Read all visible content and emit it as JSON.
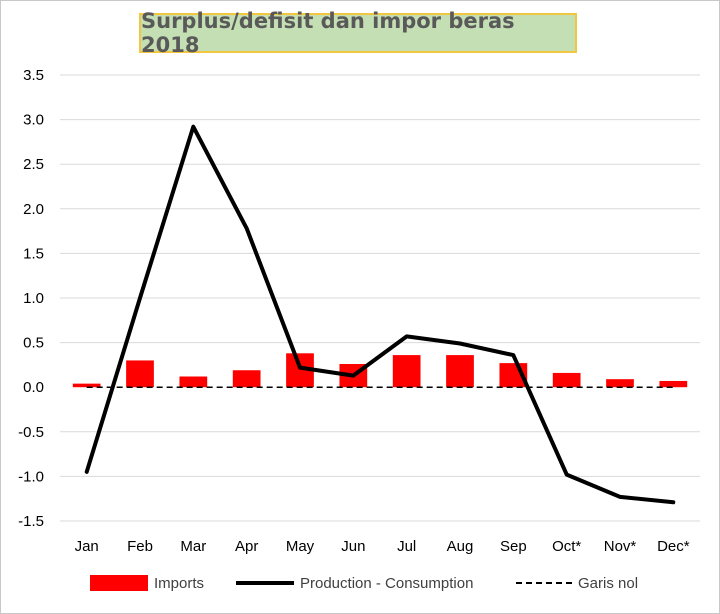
{
  "chart_data": {
    "type": "bar",
    "title": "Surplus/defisit dan impor beras 2018",
    "categories": [
      "Jan",
      "Feb",
      "Mar",
      "Apr",
      "May",
      "Jun",
      "Jul",
      "Aug",
      "Sep",
      "Oct*",
      "Nov*",
      "Dec*"
    ],
    "series": [
      {
        "name": "Imports",
        "type": "bar",
        "color": "#ff0000",
        "values": [
          0.04,
          0.3,
          0.12,
          0.19,
          0.38,
          0.26,
          0.36,
          0.36,
          0.27,
          0.16,
          0.09,
          0.07
        ]
      },
      {
        "name": "Production - Consumption",
        "type": "line",
        "color": "#000000",
        "values": [
          -0.95,
          1.0,
          2.92,
          1.78,
          0.22,
          0.13,
          0.57,
          0.49,
          0.36,
          -0.98,
          -1.23,
          -1.29
        ]
      },
      {
        "name": "Garis nol",
        "type": "line",
        "style": "dashed",
        "color": "#000000",
        "values": [
          0,
          0,
          0,
          0,
          0,
          0,
          0,
          0,
          0,
          0,
          0,
          0
        ]
      }
    ],
    "ylim": [
      -1.5,
      3.5
    ],
    "yticks": [
      "3.5",
      "3.0",
      "2.5",
      "2.0",
      "1.5",
      "1.0",
      "0.5",
      "0.0",
      "-0.5",
      "-1.0",
      "-1.5"
    ],
    "grid": true,
    "legend_position": "bottom"
  }
}
